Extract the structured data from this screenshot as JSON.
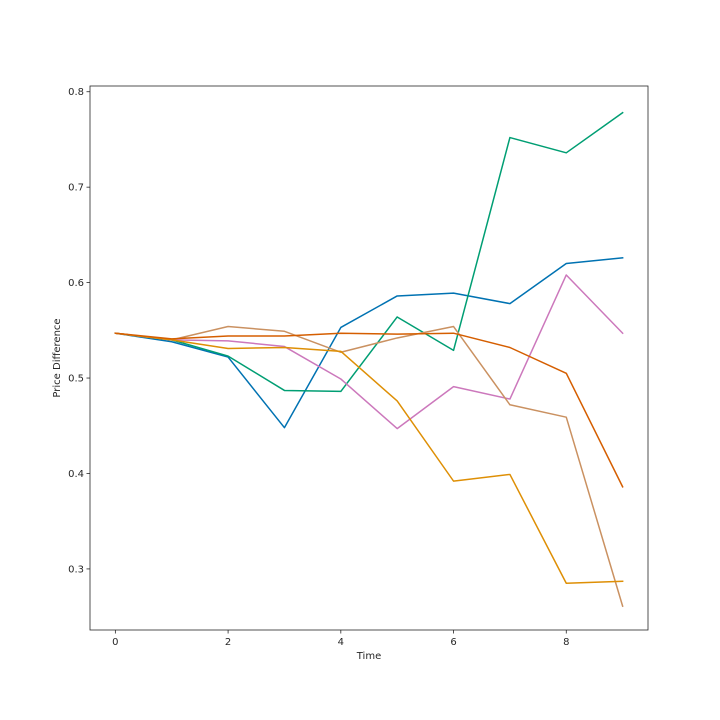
{
  "chart_data": {
    "type": "line",
    "title": "",
    "xlabel": "Time",
    "ylabel": "Price Difference",
    "xlim": [
      -0.45,
      9.45
    ],
    "ylim": [
      0.236,
      0.806
    ],
    "x_ticks": [
      0,
      2,
      4,
      6,
      8
    ],
    "y_ticks": [
      0.3,
      0.4,
      0.5,
      0.6,
      0.7,
      0.8
    ],
    "x_tick_labels": [
      "0",
      "2",
      "4",
      "6",
      "8"
    ],
    "y_tick_labels": [
      "0.3",
      "0.4",
      "0.5",
      "0.6",
      "0.7",
      "0.8"
    ],
    "grid": false,
    "legend": "none",
    "x": [
      0,
      1,
      2,
      3,
      4,
      5,
      6,
      7,
      8,
      9
    ],
    "series": [
      {
        "color": "#0072b2",
        "values": [
          0.547,
          0.538,
          0.522,
          0.448,
          0.553,
          0.586,
          0.589,
          0.578,
          0.62,
          0.626
        ]
      },
      {
        "color": "#009e73",
        "values": [
          0.547,
          0.54,
          0.523,
          0.487,
          0.486,
          0.564,
          0.529,
          0.752,
          0.736,
          0.778
        ]
      },
      {
        "color": "#cc78bc",
        "values": [
          0.547,
          0.54,
          0.539,
          0.533,
          0.499,
          0.447,
          0.491,
          0.478,
          0.608,
          0.547
        ]
      },
      {
        "color": "#ca9161",
        "values": [
          0.547,
          0.54,
          0.554,
          0.549,
          0.527,
          0.542,
          0.554,
          0.472,
          0.459,
          0.261
        ]
      },
      {
        "color": "#de8f05",
        "values": [
          0.547,
          0.54,
          0.531,
          0.532,
          0.528,
          0.476,
          0.392,
          0.399,
          0.285,
          0.287
        ]
      },
      {
        "color": "#d55e00",
        "values": [
          0.547,
          0.541,
          0.544,
          0.544,
          0.547,
          0.546,
          0.547,
          0.532,
          0.505,
          0.386
        ]
      }
    ]
  }
}
